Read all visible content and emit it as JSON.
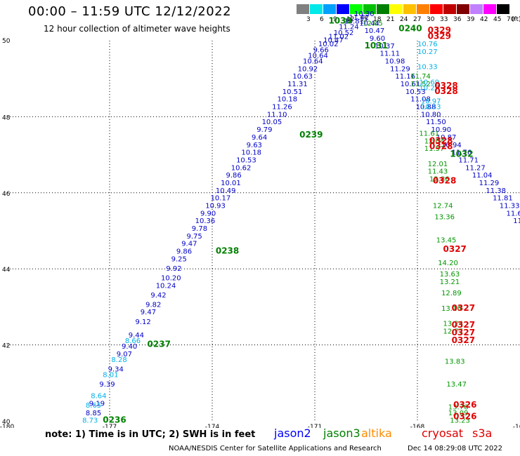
{
  "header": {
    "title": "00:00 – 11:59 UTC 12/12/2022",
    "subtitle": "12 hour collection of altimeter wave heights"
  },
  "color_scale": {
    "unit": "(ft)",
    "labels": [
      "3",
      "6",
      "9",
      "12",
      "15",
      "18",
      "21",
      "24",
      "27",
      "30",
      "33",
      "36",
      "39",
      "42",
      "45",
      "70"
    ],
    "colors": [
      "#808080",
      "#00e8e8",
      "#00a0ff",
      "#0000ff",
      "#00ff00",
      "#00c000",
      "#008000",
      "#ffff00",
      "#ffc000",
      "#ff8000",
      "#ff0000",
      "#c00000",
      "#800000",
      "#c080ff",
      "#ff00ff",
      "#000000"
    ]
  },
  "chart_data": {
    "type": "scatter",
    "xlim": [
      -180,
      -165
    ],
    "ylim": [
      40,
      50
    ],
    "x_ticks": [
      "-180",
      "-177",
      "-174",
      "-171",
      "-168",
      "-165"
    ],
    "y_ticks": [
      "50",
      "48",
      "46",
      "44",
      "42",
      "40"
    ],
    "grid": true,
    "series": [
      {
        "name": "jason2",
        "color": "#0000c8",
        "points": [
          {
            "lon": -177.7,
            "lat": 40.15,
            "v": "8.85"
          },
          {
            "lon": -177.6,
            "lat": 40.4,
            "v": "9.19"
          },
          {
            "lon": -177.3,
            "lat": 40.9,
            "v": "9.39"
          },
          {
            "lon": -177.05,
            "lat": 41.3,
            "v": "9.34"
          },
          {
            "lon": -176.8,
            "lat": 41.7,
            "v": "9.07"
          },
          {
            "lon": -176.65,
            "lat": 41.9,
            "v": "9.40"
          },
          {
            "lon": -176.45,
            "lat": 42.2,
            "v": "9.44"
          },
          {
            "lon": -176.25,
            "lat": 42.55,
            "v": "9.12"
          },
          {
            "lon": -176.1,
            "lat": 42.8,
            "v": "9.47"
          },
          {
            "lon": -175.95,
            "lat": 43.0,
            "v": "9.82"
          },
          {
            "lon": -175.8,
            "lat": 43.25,
            "v": "9.42"
          },
          {
            "lon": -175.65,
            "lat": 43.5,
            "v": "10.24"
          },
          {
            "lon": -175.5,
            "lat": 43.7,
            "v": "10.20"
          },
          {
            "lon": -175.35,
            "lat": 43.95,
            "v": "9.92"
          },
          {
            "lon": -175.2,
            "lat": 44.2,
            "v": "9.25"
          },
          {
            "lon": -175.05,
            "lat": 44.4,
            "v": "9.86"
          },
          {
            "lon": -174.9,
            "lat": 44.6,
            "v": "9.47"
          },
          {
            "lon": -174.75,
            "lat": 44.8,
            "v": "9.75"
          },
          {
            "lon": -174.6,
            "lat": 45.0,
            "v": "9.78"
          },
          {
            "lon": -174.5,
            "lat": 45.2,
            "v": "10.36"
          },
          {
            "lon": -174.35,
            "lat": 45.4,
            "v": "9.90"
          },
          {
            "lon": -174.2,
            "lat": 45.6,
            "v": "10.93"
          },
          {
            "lon": -174.05,
            "lat": 45.8,
            "v": "10.17"
          },
          {
            "lon": -173.9,
            "lat": 46.0,
            "v": "10.49"
          },
          {
            "lon": -173.75,
            "lat": 46.2,
            "v": "10.01"
          },
          {
            "lon": -173.6,
            "lat": 46.4,
            "v": "9.86"
          },
          {
            "lon": -173.45,
            "lat": 46.6,
            "v": "10.62"
          },
          {
            "lon": -173.3,
            "lat": 46.8,
            "v": "10.53"
          },
          {
            "lon": -173.15,
            "lat": 47.0,
            "v": "10.18"
          },
          {
            "lon": -173.0,
            "lat": 47.2,
            "v": "9.63"
          },
          {
            "lon": -172.85,
            "lat": 47.4,
            "v": "9.64"
          },
          {
            "lon": -172.7,
            "lat": 47.6,
            "v": "9.79"
          },
          {
            "lon": -172.55,
            "lat": 47.8,
            "v": "10.05"
          },
          {
            "lon": -172.4,
            "lat": 48.0,
            "v": "11.10"
          },
          {
            "lon": -172.25,
            "lat": 48.2,
            "v": "11.26"
          },
          {
            "lon": -172.1,
            "lat": 48.4,
            "v": "10.18"
          },
          {
            "lon": -171.95,
            "lat": 48.6,
            "v": "10.51"
          },
          {
            "lon": -171.8,
            "lat": 48.8,
            "v": "11.31"
          },
          {
            "lon": -171.65,
            "lat": 49.0,
            "v": "10.63"
          },
          {
            "lon": -171.5,
            "lat": 49.2,
            "v": "10.92"
          },
          {
            "lon": -171.35,
            "lat": 49.4,
            "v": "10.64"
          },
          {
            "lon": -171.2,
            "lat": 49.55,
            "v": "10.64"
          },
          {
            "lon": -171.05,
            "lat": 49.7,
            "v": "9.66"
          },
          {
            "lon": -170.9,
            "lat": 49.85,
            "v": "10.02"
          },
          {
            "lon": -170.75,
            "lat": 49.95,
            "v": "10.47"
          },
          {
            "lon": -170.6,
            "lat": 50.05,
            "v": "11.02"
          },
          {
            "lon": -170.45,
            "lat": 50.15,
            "v": "10.52"
          },
          {
            "lon": -170.3,
            "lat": 50.3,
            "v": "11.24"
          },
          {
            "lon": -170.15,
            "lat": 50.45,
            "v": "10.81"
          },
          {
            "lon": -170.0,
            "lat": 50.55,
            "v": "11.42"
          },
          {
            "lon": -169.85,
            "lat": 50.65,
            "v": "10.30"
          },
          {
            "lon": -169.7,
            "lat": 50.4,
            "v": "10.44"
          },
          {
            "lon": -169.55,
            "lat": 50.2,
            "v": "10.47"
          },
          {
            "lon": -169.4,
            "lat": 50.0,
            "v": "9.60"
          },
          {
            "lon": -169.25,
            "lat": 49.8,
            "v": "10.37"
          },
          {
            "lon": -169.1,
            "lat": 49.6,
            "v": "11.11"
          },
          {
            "lon": -168.95,
            "lat": 49.4,
            "v": "10.98"
          },
          {
            "lon": -168.8,
            "lat": 49.2,
            "v": "11.29"
          },
          {
            "lon": -168.65,
            "lat": 49.0,
            "v": "11.16"
          },
          {
            "lon": -168.5,
            "lat": 48.8,
            "v": "10.61"
          },
          {
            "lon": -168.35,
            "lat": 48.6,
            "v": "10.53"
          },
          {
            "lon": -168.2,
            "lat": 48.4,
            "v": "11.08"
          },
          {
            "lon": -168.05,
            "lat": 48.2,
            "v": "10.88"
          },
          {
            "lon": -167.9,
            "lat": 48.0,
            "v": "10.80"
          },
          {
            "lon": -167.75,
            "lat": 47.8,
            "v": "11.50"
          },
          {
            "lon": -167.6,
            "lat": 47.6,
            "v": "10.90"
          },
          {
            "lon": -167.45,
            "lat": 47.4,
            "v": "10.87"
          },
          {
            "lon": -167.3,
            "lat": 47.2,
            "v": "10.94"
          },
          {
            "lon": -167.0,
            "lat": 47.0,
            "v": "11.76"
          },
          {
            "lon": -166.8,
            "lat": 46.8,
            "v": "11.71"
          },
          {
            "lon": -166.6,
            "lat": 46.6,
            "v": "11.27"
          },
          {
            "lon": -166.4,
            "lat": 46.4,
            "v": "11.04"
          },
          {
            "lon": -166.2,
            "lat": 46.2,
            "v": "11.29"
          },
          {
            "lon": -166.0,
            "lat": 46.0,
            "v": "11.38"
          },
          {
            "lon": -165.8,
            "lat": 45.8,
            "v": "11.81"
          },
          {
            "lon": -165.6,
            "lat": 45.6,
            "v": "11.33"
          },
          {
            "lon": -165.4,
            "lat": 45.4,
            "v": "11.67"
          },
          {
            "lon": -165.2,
            "lat": 45.2,
            "v": "11.11"
          }
        ]
      },
      {
        "name": "jason3",
        "color": "#009600",
        "points": [
          {
            "lon": -169.6,
            "lat": 50.4,
            "v": "12.05"
          },
          {
            "lon": -168.2,
            "lat": 49.0,
            "v": "11.74"
          },
          {
            "lon": -168.2,
            "lat": 48.8,
            "v": "11.52"
          },
          {
            "lon": -167.95,
            "lat": 47.5,
            "v": "11.61"
          },
          {
            "lon": -167.8,
            "lat": 47.3,
            "v": "12.04"
          },
          {
            "lon": -167.8,
            "lat": 47.1,
            "v": "11.57"
          },
          {
            "lon": -167.7,
            "lat": 46.7,
            "v": "12.01"
          },
          {
            "lon": -167.7,
            "lat": 46.5,
            "v": "11.43"
          },
          {
            "lon": -167.65,
            "lat": 46.3,
            "v": "12.86"
          },
          {
            "lon": -167.55,
            "lat": 45.6,
            "v": "12.74"
          },
          {
            "lon": -167.5,
            "lat": 45.3,
            "v": "13.36"
          },
          {
            "lon": -167.45,
            "lat": 44.7,
            "v": "13.45"
          },
          {
            "lon": -167.4,
            "lat": 44.1,
            "v": "14.20"
          },
          {
            "lon": -167.35,
            "lat": 43.8,
            "v": "13.63"
          },
          {
            "lon": -167.35,
            "lat": 43.6,
            "v": "13.21"
          },
          {
            "lon": -167.3,
            "lat": 43.3,
            "v": "12.89"
          },
          {
            "lon": -167.3,
            "lat": 42.9,
            "v": "13.16"
          },
          {
            "lon": -167.25,
            "lat": 42.5,
            "v": "13.24"
          },
          {
            "lon": -167.25,
            "lat": 42.3,
            "v": "12.77"
          },
          {
            "lon": -167.2,
            "lat": 41.5,
            "v": "13.83"
          },
          {
            "lon": -167.15,
            "lat": 40.9,
            "v": "13.47"
          },
          {
            "lon": -167.1,
            "lat": 40.3,
            "v": "13.76"
          },
          {
            "lon": -167.1,
            "lat": 40.15,
            "v": "13.09"
          },
          {
            "lon": -167.05,
            "lat": 39.95,
            "v": "13.23"
          }
        ]
      },
      {
        "name": "jason2_light",
        "color": "#00b0e8",
        "points": [
          {
            "lon": -177.8,
            "lat": 39.95,
            "v": "8.73"
          },
          {
            "lon": -177.7,
            "lat": 40.35,
            "v": "8.65"
          },
          {
            "lon": -177.55,
            "lat": 40.6,
            "v": "8.64"
          },
          {
            "lon": -177.2,
            "lat": 41.15,
            "v": "8.01"
          },
          {
            "lon": -176.95,
            "lat": 41.55,
            "v": "8.28"
          },
          {
            "lon": -176.55,
            "lat": 42.05,
            "v": "8.66"
          },
          {
            "lon": -168.0,
            "lat": 49.85,
            "v": "10.76"
          },
          {
            "lon": -168.0,
            "lat": 49.65,
            "v": "10.27"
          },
          {
            "lon": -168.0,
            "lat": 49.25,
            "v": "10.33"
          },
          {
            "lon": -167.95,
            "lat": 48.85,
            "v": "10.69"
          },
          {
            "lon": -167.95,
            "lat": 48.7,
            "v": "10.27"
          },
          {
            "lon": -167.9,
            "lat": 48.35,
            "v": "10.97"
          },
          {
            "lon": -167.9,
            "lat": 48.2,
            "v": "10.83"
          }
        ]
      }
    ],
    "time_labels": [
      {
        "lon": -177.2,
        "lat": 39.95,
        "t": "0236",
        "color": "#008000"
      },
      {
        "lon": -175.9,
        "lat": 41.95,
        "t": "0237",
        "color": "#008000"
      },
      {
        "lon": -173.9,
        "lat": 44.4,
        "t": "0238",
        "color": "#008000"
      },
      {
        "lon": -171.45,
        "lat": 47.45,
        "t": "0239",
        "color": "#008000"
      },
      {
        "lon": -170.6,
        "lat": 50.45,
        "t": "1030",
        "color": "#008000"
      },
      {
        "lon": -169.55,
        "lat": 49.8,
        "t": "1031",
        "color": "#008000"
      },
      {
        "lon": -168.55,
        "lat": 50.25,
        "t": "0240",
        "color": "#008000"
      },
      {
        "lon": -167.05,
        "lat": 46.95,
        "t": "1032",
        "color": "#008000"
      },
      {
        "lon": -167.7,
        "lat": 50.2,
        "t": "0329",
        "color": "#e00000"
      },
      {
        "lon": -167.7,
        "lat": 50.05,
        "t": "0329",
        "color": "#e00000"
      },
      {
        "lon": -167.5,
        "lat": 48.75,
        "t": "0328",
        "color": "#e00000"
      },
      {
        "lon": -167.5,
        "lat": 48.6,
        "t": "0328",
        "color": "#e00000"
      },
      {
        "lon": -167.65,
        "lat": 47.3,
        "t": "0328",
        "color": "#e00000"
      },
      {
        "lon": -167.65,
        "lat": 47.15,
        "t": "0328",
        "color": "#e00000"
      },
      {
        "lon": -167.55,
        "lat": 46.25,
        "t": "0328",
        "color": "#e00000"
      },
      {
        "lon": -167.25,
        "lat": 44.45,
        "t": "0327",
        "color": "#e00000"
      },
      {
        "lon": -167.0,
        "lat": 42.9,
        "t": "0327",
        "color": "#e00000"
      },
      {
        "lon": -167.0,
        "lat": 42.45,
        "t": "0327",
        "color": "#e00000"
      },
      {
        "lon": -167.0,
        "lat": 42.25,
        "t": "0327",
        "color": "#e00000"
      },
      {
        "lon": -167.0,
        "lat": 42.05,
        "t": "0327",
        "color": "#e00000"
      },
      {
        "lon": -166.95,
        "lat": 40.35,
        "t": "0326",
        "color": "#e00000"
      },
      {
        "lon": -166.95,
        "lat": 40.05,
        "t": "0326",
        "color": "#e00000"
      }
    ]
  },
  "footer": {
    "note": "note:  1) Time is in UTC;  2) SWH is in feet",
    "satellites": [
      {
        "name": "jason2",
        "color": "#0000ff"
      },
      {
        "name": "jason3",
        "color": "#008000"
      },
      {
        "name": "altika",
        "color": "#ff8c00"
      },
      {
        "name": "cryosat",
        "color": "#e00000"
      },
      {
        "name": "s3a",
        "color": "#e00000"
      }
    ],
    "credit": "NOAA/NESDIS Center for Satellite Applications and Research",
    "timestamp": "Dec 14 08:29:08 UTC 2022"
  }
}
